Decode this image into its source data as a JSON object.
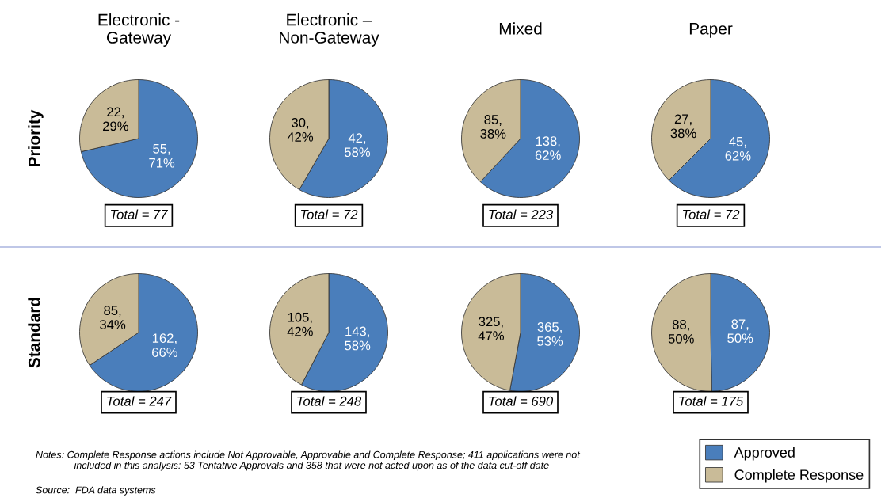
{
  "chart_data": [
    {
      "type": "pie",
      "title": "Electronic -\nGateway",
      "ylabel": "Priority",
      "categories": [
        "Approved",
        "Complete Response"
      ],
      "values": [
        55,
        22
      ],
      "colors": [
        "#4a7ebb",
        "#c9bb98"
      ],
      "value_labels": [
        "55,\n71%",
        "22,\n29%"
      ],
      "annotations": [
        "Total = 77"
      ],
      "legend": "bottom right"
    },
    {
      "type": "pie",
      "title": "Electronic –\nNon-Gateway",
      "categories": [
        null,
        null
      ],
      "values": [
        42,
        30
      ],
      "colors": [
        "#4a7ebb",
        "#c9bb98"
      ],
      "value_labels": [
        "42,\n58%",
        "30,\n42%"
      ],
      "annotations": [
        "Total = 72"
      ],
      "legend": false
    },
    {
      "type": "pie",
      "title": "Mixed",
      "categories": [
        null,
        null
      ],
      "values": [
        138,
        85
      ],
      "colors": [
        "#4a7ebb",
        "#c9bb98"
      ],
      "value_labels": [
        "138,\n62%",
        "85,\n38%"
      ],
      "annotations": [
        "Total = 223"
      ],
      "legend": false
    },
    {
      "type": "pie",
      "title": "Paper",
      "categories": [
        null,
        null
      ],
      "values": [
        45,
        27
      ],
      "colors": [
        "#4a7ebb",
        "#c9bb98"
      ],
      "value_labels": [
        "45,\n62%",
        "27,\n38%"
      ],
      "annotations": [
        "Total = 72"
      ],
      "legend": false
    },
    {
      "type": "pie",
      "ylabel": "Standard",
      "categories": [
        null,
        null
      ],
      "values": [
        162,
        85
      ],
      "colors": [
        "#4a7ebb",
        "#c9bb98"
      ],
      "value_labels": [
        "162,\n66%",
        "85,\n34%"
      ],
      "annotations": [
        "Total = 247"
      ],
      "legend": false
    },
    {
      "type": "pie",
      "categories": [
        null,
        null
      ],
      "values": [
        143,
        105
      ],
      "colors": [
        "#4a7ebb",
        "#c9bb98"
      ],
      "value_labels": [
        "143,\n58%",
        "105,\n42%"
      ],
      "annotations": [
        "Total = 248"
      ],
      "legend": false
    },
    {
      "type": "pie",
      "categories": [
        null,
        null
      ],
      "values": [
        365,
        325
      ],
      "colors": [
        "#4a7ebb",
        "#c9bb98"
      ],
      "value_labels": [
        "365,\n53%",
        "325,\n47%"
      ],
      "annotations": [
        "Total = 690"
      ],
      "legend": false
    },
    {
      "type": "pie",
      "categories": [
        null,
        null
      ],
      "values": [
        87,
        88
      ],
      "colors": [
        "#4a7ebb",
        "#c9bb98"
      ],
      "value_labels": [
        "87,\n50%",
        "88,\n50%"
      ],
      "annotations": [
        "Total = 175",
        "Notes: Complete Response actions include Not Approvable, Approvable and Complete Response; 411 applications were not\n              included in this analysis: 53 Tentative Approvals and 358 that were not acted upon as of the data cut-off date",
        "Source:  FDA data systems"
      ],
      "legend": false
    }
  ]
}
